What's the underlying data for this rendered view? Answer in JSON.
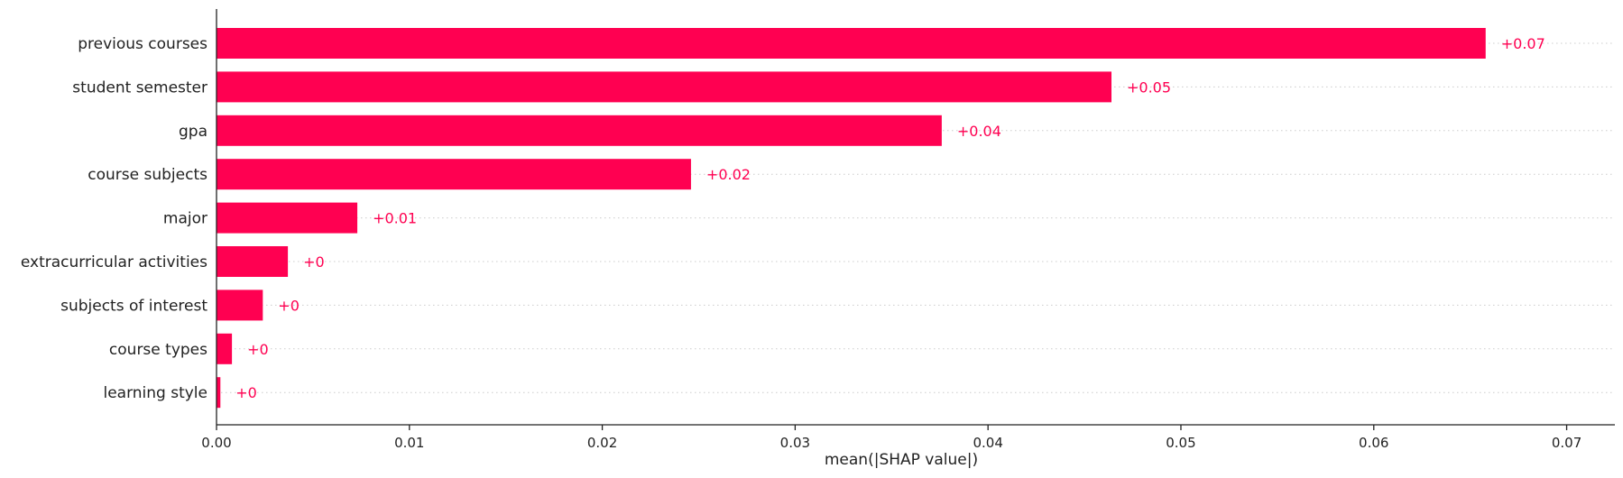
{
  "chart_data": {
    "type": "bar",
    "orientation": "horizontal",
    "categories": [
      "previous courses",
      "student semester",
      "gpa",
      "course subjects",
      "major",
      "extracurricular activities",
      "subjects of interest",
      "course types",
      "learning style"
    ],
    "values": [
      0.0658,
      0.0464,
      0.0376,
      0.0246,
      0.0073,
      0.0037,
      0.0024,
      0.0008,
      0.0002
    ],
    "value_labels": [
      "+0.07",
      "+0.05",
      "+0.04",
      "+0.02",
      "+0.01",
      "+0",
      "+0",
      "+0",
      "+0"
    ],
    "xlabel": "mean(|SHAP value|)",
    "xlim": [
      0,
      0.0725
    ],
    "xticks": [
      0,
      0.01,
      0.02,
      0.03,
      0.04,
      0.05,
      0.06,
      0.07
    ],
    "xtick_labels": [
      "0.00",
      "0.01",
      "0.02",
      "0.03",
      "0.04",
      "0.05",
      "0.06",
      "0.07"
    ],
    "grid": "dotted horizontal row guides",
    "bar_color": "#ff0051",
    "label_color": "#ff0051"
  }
}
